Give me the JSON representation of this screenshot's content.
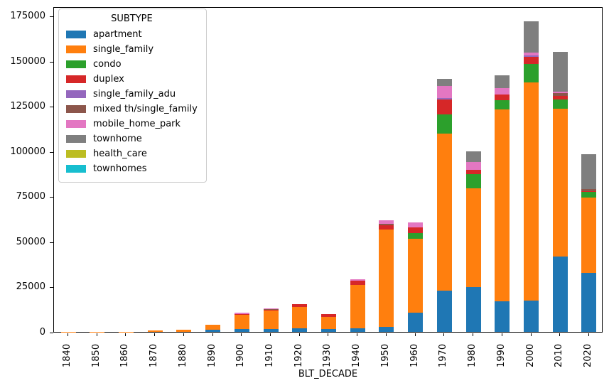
{
  "figure": {
    "xlabel": "BLT_DECADE",
    "legend_title": "SUBTYPE",
    "background_color": "#ffffff",
    "spine_color": "#000000"
  },
  "chart_data": {
    "type": "bar",
    "stacked": true,
    "title": "",
    "xlabel": "BLT_DECADE",
    "ylabel": "",
    "ylim": [
      0,
      180000
    ],
    "yticks": [
      0,
      25000,
      50000,
      75000,
      100000,
      125000,
      150000,
      175000
    ],
    "grid": false,
    "legend_position": "upper left",
    "legend_title": "SUBTYPE",
    "xtick_rotation": 90,
    "categories": [
      "1840",
      "1850",
      "1860",
      "1870",
      "1880",
      "1890",
      "1900",
      "1910",
      "1920",
      "1930",
      "1940",
      "1950",
      "1960",
      "1970",
      "1980",
      "1990",
      "2000",
      "2010",
      "2020"
    ],
    "series": [
      {
        "name": "apartment",
        "color": "#1f77b4",
        "values": [
          0,
          0,
          0,
          0,
          0,
          1000,
          1600,
          1700,
          2100,
          1500,
          1900,
          2800,
          10500,
          22800,
          24800,
          16900,
          17200,
          41800,
          32500
        ]
      },
      {
        "name": "single_family",
        "color": "#ff7f0e",
        "values": [
          50,
          50,
          100,
          700,
          1300,
          2800,
          7700,
          10200,
          11500,
          6700,
          24000,
          53700,
          40900,
          86800,
          54800,
          106100,
          120900,
          81500,
          41800
        ]
      },
      {
        "name": "condo",
        "color": "#2ca02c",
        "values": [
          0,
          0,
          0,
          0,
          0,
          0,
          0,
          0,
          0,
          0,
          0,
          0,
          3100,
          10900,
          7900,
          5400,
          10100,
          5300,
          3200
        ]
      },
      {
        "name": "duplex",
        "color": "#d62728",
        "values": [
          0,
          0,
          0,
          0,
          0,
          0,
          400,
          500,
          1700,
          1500,
          2600,
          2600,
          3500,
          8000,
          2200,
          3000,
          3900,
          2000,
          400
        ]
      },
      {
        "name": "single_family_adu",
        "color": "#9467bd",
        "values": [
          0,
          0,
          0,
          0,
          0,
          0,
          0,
          0,
          0,
          0,
          0,
          0,
          0,
          800,
          0,
          0,
          800,
          0,
          0
        ]
      },
      {
        "name": "mixed th/single_family",
        "color": "#8c564b",
        "values": [
          0,
          0,
          0,
          0,
          0,
          0,
          0,
          300,
          0,
          0,
          0,
          650,
          0,
          0,
          0,
          0,
          0,
          1600,
          1200
        ]
      },
      {
        "name": "mobile_home_park",
        "color": "#e377c2",
        "values": [
          0,
          0,
          0,
          0,
          0,
          0,
          900,
          400,
          0,
          0,
          650,
          1850,
          2600,
          6900,
          4300,
          3500,
          1600,
          800,
          0
        ]
      },
      {
        "name": "townhome",
        "color": "#7f7f7f",
        "values": [
          0,
          0,
          0,
          0,
          0,
          0,
          0,
          0,
          0,
          0,
          0,
          0,
          0,
          3800,
          5900,
          7000,
          17300,
          21800,
          19400
        ]
      },
      {
        "name": "health_care",
        "color": "#bcbd22",
        "values": [
          0,
          0,
          0,
          0,
          0,
          0,
          0,
          0,
          0,
          0,
          0,
          0,
          0,
          0,
          0,
          0,
          0,
          0,
          0
        ]
      },
      {
        "name": "townhomes",
        "color": "#17becf",
        "values": [
          0,
          0,
          0,
          0,
          0,
          0,
          0,
          0,
          0,
          0,
          0,
          0,
          0,
          0,
          0,
          0,
          0,
          0,
          0
        ]
      }
    ]
  }
}
